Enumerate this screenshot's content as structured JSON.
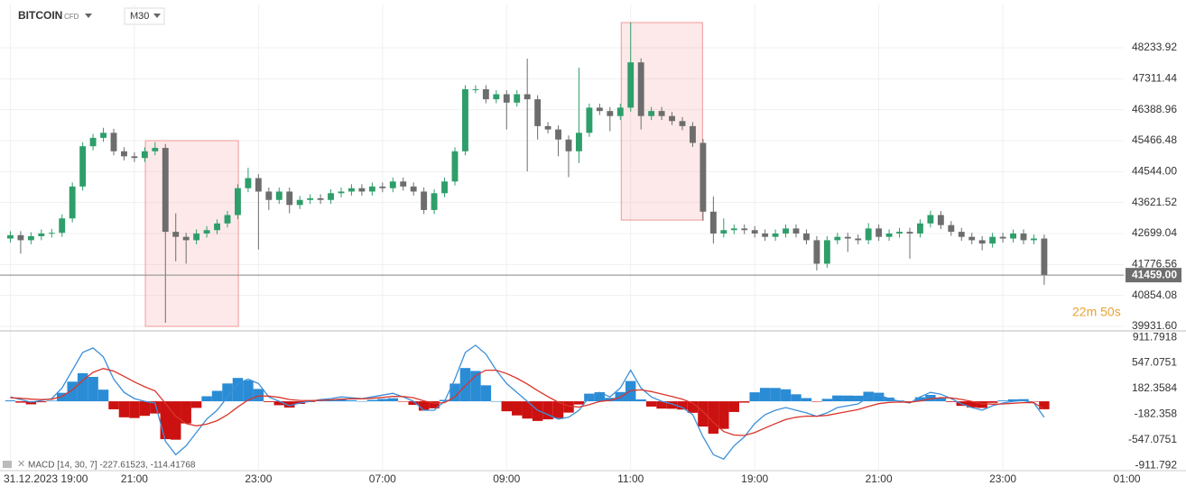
{
  "chart_data": [
    {
      "type": "candlestick",
      "title": "BITCOIN",
      "subtitle": "CFD",
      "timeframe": "M30",
      "up_color": "#2e9e6a",
      "down_color": "#6d6d6d",
      "grid": true,
      "x": [
        0,
        1,
        2,
        3,
        4,
        5,
        6,
        7,
        8,
        9,
        10,
        11,
        12,
        13,
        14,
        15,
        16,
        17,
        18,
        19,
        20,
        21,
        22,
        23,
        24,
        25,
        26,
        27,
        28,
        29,
        30,
        31,
        32,
        33,
        34,
        35,
        36,
        37,
        38,
        39,
        40,
        41,
        42,
        43,
        44,
        45,
        46,
        47,
        48,
        49,
        50,
        51,
        52,
        53,
        54,
        55,
        56,
        57,
        58,
        59,
        60,
        61,
        62,
        63,
        64,
        65,
        66,
        67,
        68,
        69,
        70,
        71,
        72,
        73,
        74,
        75,
        76,
        77,
        78,
        79,
        80,
        81,
        82,
        83,
        84,
        85,
        86,
        87,
        88,
        89,
        90,
        91,
        92,
        93,
        94,
        95,
        96,
        97,
        98,
        99,
        100
      ],
      "open": [
        42550,
        42650,
        42500,
        42620,
        42700,
        42720,
        43150,
        44100,
        45300,
        45550,
        45700,
        45150,
        45000,
        44950,
        45150,
        45250,
        42750,
        42600,
        42500,
        42700,
        42800,
        43000,
        43250,
        44050,
        44350,
        43950,
        43700,
        43950,
        43550,
        43700,
        43750,
        43700,
        43900,
        43950,
        44050,
        43950,
        44100,
        44050,
        44250,
        44100,
        43950,
        43400,
        43900,
        44250,
        45150,
        47000,
        47000,
        46700,
        46850,
        46600,
        46850,
        46700,
        45900,
        45800,
        45500,
        45150,
        45700,
        46450,
        46350,
        46200,
        46450,
        47800,
        46200,
        46350,
        46200,
        46050,
        45900,
        45400,
        43350,
        42700,
        42800,
        42850,
        42800,
        42700,
        42600,
        42700,
        42850,
        42700,
        42500,
        41800,
        42500,
        42600,
        42550,
        42500,
        42850,
        42600,
        42700,
        42750,
        42700,
        43000,
        43250,
        42950,
        42750,
        42600,
        42500,
        42400,
        42600,
        42550,
        42700,
        42500,
        42550
      ],
      "high": [
        42770,
        42770,
        42740,
        42820,
        42840,
        43270,
        44220,
        45420,
        45670,
        45850,
        45820,
        45270,
        45120,
        45270,
        45420,
        45370,
        43300,
        42720,
        42820,
        42920,
        43120,
        43370,
        44170,
        44660,
        44470,
        44070,
        44070,
        44070,
        43820,
        43870,
        43870,
        44020,
        44070,
        44170,
        44170,
        44220,
        44220,
        44370,
        44370,
        44220,
        44070,
        44020,
        44370,
        45270,
        47120,
        47120,
        47120,
        46970,
        46970,
        46970,
        47910,
        46820,
        46020,
        45920,
        45620,
        47640,
        46570,
        46570,
        46470,
        46570,
        48990,
        47920,
        46470,
        46470,
        46320,
        46170,
        46020,
        45520,
        43800,
        43150,
        42970,
        42970,
        42920,
        42820,
        42820,
        42970,
        42970,
        42820,
        42620,
        42620,
        42720,
        42720,
        42670,
        43010,
        42970,
        42820,
        42870,
        42870,
        43120,
        43380,
        43370,
        43070,
        42870,
        42720,
        42620,
        42720,
        42720,
        42820,
        42820,
        42670,
        42670
      ],
      "low": [
        42430,
        42100,
        42380,
        42500,
        42580,
        42600,
        43030,
        43980,
        45180,
        45430,
        45030,
        44880,
        44830,
        44830,
        45030,
        40040,
        41870,
        41800,
        42380,
        42580,
        42680,
        42880,
        43130,
        43930,
        42220,
        43400,
        43580,
        43300,
        43430,
        43580,
        43580,
        43580,
        43780,
        43830,
        43830,
        43830,
        43930,
        43930,
        43980,
        43830,
        43280,
        43280,
        43780,
        44130,
        45030,
        46880,
        46580,
        46580,
        45800,
        46480,
        44550,
        45500,
        45680,
        45000,
        44380,
        44800,
        45580,
        46230,
        45750,
        46080,
        46330,
        45800,
        46080,
        46080,
        45930,
        45780,
        45280,
        43080,
        42400,
        42580,
        42680,
        42680,
        42580,
        42480,
        42480,
        42580,
        42580,
        42380,
        41600,
        41680,
        42380,
        42150,
        42380,
        42380,
        42480,
        42480,
        42580,
        41950,
        42580,
        42880,
        42830,
        42630,
        42480,
        42380,
        42200,
        42280,
        42430,
        42430,
        42380,
        42380,
        41170
      ],
      "close": [
        42650,
        42500,
        42620,
        42700,
        42720,
        43150,
        44100,
        45300,
        45550,
        45700,
        45150,
        45000,
        44950,
        45150,
        45250,
        42750,
        42600,
        42500,
        42700,
        42800,
        43000,
        43250,
        44050,
        44350,
        43950,
        43700,
        43950,
        43550,
        43700,
        43750,
        43700,
        43900,
        43950,
        44050,
        43950,
        44100,
        44050,
        44250,
        44100,
        43950,
        43400,
        43900,
        44250,
        45150,
        47000,
        47000,
        46700,
        46850,
        46600,
        46850,
        46700,
        45900,
        45800,
        45500,
        45150,
        45700,
        46450,
        46350,
        46200,
        46450,
        47800,
        46200,
        46350,
        46200,
        46050,
        45900,
        45400,
        43350,
        42700,
        42800,
        42850,
        42800,
        42700,
        42600,
        42700,
        42850,
        42700,
        42500,
        41800,
        42500,
        42600,
        42550,
        42500,
        42850,
        42600,
        42700,
        42750,
        42700,
        43000,
        43250,
        42950,
        42750,
        42600,
        42500,
        42400,
        42600,
        42550,
        42700,
        42500,
        42550,
        41459
      ],
      "xlim": [
        -1,
        109
      ],
      "xticks": [
        {
          "value": 0,
          "label": "31.12.2023 19:00"
        },
        {
          "value": 12,
          "label": "21:00"
        },
        {
          "value": 24,
          "label": "23:00"
        },
        {
          "value": 36,
          "label": "07:00"
        },
        {
          "value": 48,
          "label": "09:00"
        },
        {
          "value": 60,
          "label": "11:00"
        },
        {
          "value": 72,
          "label": "19:00"
        },
        {
          "value": 84,
          "label": "21:00"
        },
        {
          "value": 96,
          "label": "23:00"
        },
        {
          "value": 108,
          "label": "01:00"
        }
      ],
      "ylim": [
        39824,
        49524
      ],
      "yticks": [
        {
          "value": 39931.6,
          "label": "39931.60"
        },
        40854.08,
        41776.56,
        42699.04,
        43621.52,
        {
          "value": 44544,
          "label": "44544.00"
        },
        45466.48,
        46388.96,
        47311.44,
        48233.92
      ],
      "highlights": [
        {
          "x": [
            13.06,
            22.06
          ],
          "y": [
            39932,
            45466
          ]
        },
        {
          "x": [
            59.09,
            66.95
          ],
          "y": [
            43100,
            48986
          ]
        }
      ],
      "last_price": {
        "value": 41459,
        "label": "41459.00"
      },
      "countdown": "22m 50s"
    },
    {
      "type": "line",
      "legend": "MACD [14, 30, 7] -227.61523, -114.41768",
      "grid": false,
      "ylim": [
        -975,
        990
      ],
      "yticks": [
        911.7918,
        547.0751,
        182.3584,
        -182.358,
        -547.0751,
        -911.792
      ],
      "series": [
        {
          "type": "bar",
          "color": "#2b8cd6",
          "negative_color": "#cc1111",
          "values": [
            13,
            -19,
            -43,
            -13,
            9,
            121,
            280,
            400,
            348,
            166,
            -114,
            -228,
            -238,
            -207,
            -174,
            -539,
            -547,
            -315,
            -94,
            72,
            149,
            254,
            333,
            297,
            176,
            -11,
            -56,
            -89,
            -38,
            -10,
            11,
            18,
            32,
            15,
            2,
            20,
            34,
            44,
            -5,
            -51,
            -133,
            -100,
            20,
            252,
            474,
            432,
            228,
            0,
            -142,
            -201,
            -246,
            -280,
            -257,
            -240,
            -161,
            -45,
            109,
            130,
            49,
            132,
            289,
            27,
            -75,
            -104,
            -106,
            -118,
            -164,
            -360,
            -461,
            -393,
            -152,
            -19,
            128,
            191,
            190,
            171,
            100,
            46,
            -3,
            35,
            83,
            82,
            80,
            136,
            122,
            53,
            11,
            -11,
            58,
            91,
            49,
            -10,
            -65,
            -87,
            -94,
            -22,
            12,
            28,
            31,
            -5,
            -113
          ]
        },
        {
          "type": "line",
          "color": "#3b8fd9",
          "values": [
            63,
            25,
            -13,
            13,
            38,
            190,
            443,
            696,
            760,
            633,
            316,
            127,
            38,
            0,
            -25,
            -570,
            -760,
            -633,
            -443,
            -253,
            -127,
            63,
            253,
            316,
            253,
            63,
            0,
            -63,
            -25,
            0,
            25,
            38,
            63,
            51,
            38,
            63,
            89,
            114,
            63,
            0,
            -127,
            -127,
            0,
            316,
            696,
            798,
            671,
            443,
            253,
            127,
            0,
            -127,
            -190,
            -253,
            -228,
            -127,
            63,
            127,
            63,
            190,
            443,
            190,
            63,
            0,
            -38,
            -89,
            -190,
            -506,
            -760,
            -823,
            -633,
            -506,
            -316,
            -190,
            -127,
            -89,
            -127,
            -165,
            -215,
            -165,
            -89,
            -63,
            -38,
            63,
            89,
            38,
            0,
            -25,
            63,
            127,
            101,
            38,
            -38,
            -89,
            -127,
            -63,
            -25,
            0,
            13,
            -25,
            -227.61523
          ]
        },
        {
          "type": "line",
          "color": "#d9342b",
          "values": [
            50,
            44,
            30,
            26,
            29,
            69,
            163,
            296,
            412,
            467,
            430,
            355,
            276,
            207,
            149,
            -31,
            -213,
            -318,
            -349,
            -325,
            -276,
            -191,
            -80,
            19,
            77,
            74,
            56,
            26,
            13,
            10,
            14,
            20,
            31,
            36,
            36,
            43,
            55,
            70,
            68,
            51,
            6,
            -27,
            -20,
            64,
            222,
            366,
            443,
            443,
            395,
            328,
            246,
            153,
            67,
            -13,
            -67,
            -82,
            -46,
            -3,
            14,
            58,
            154,
            163,
            138,
            104,
            68,
            29,
            -26,
            -146,
            -299,
            -430,
            -481,
            -487,
            -444,
            -381,
            -317,
            -260,
            -227,
            -211,
            -212,
            -200,
            -172,
            -145,
            -118,
            -73,
            -33,
            -15,
            -11,
            -14,
            5,
            36,
            52,
            48,
            27,
            -2,
            -33,
            -41,
            -37,
            -28,
            -18,
            -20,
            -114.41768
          ]
        }
      ]
    }
  ]
}
